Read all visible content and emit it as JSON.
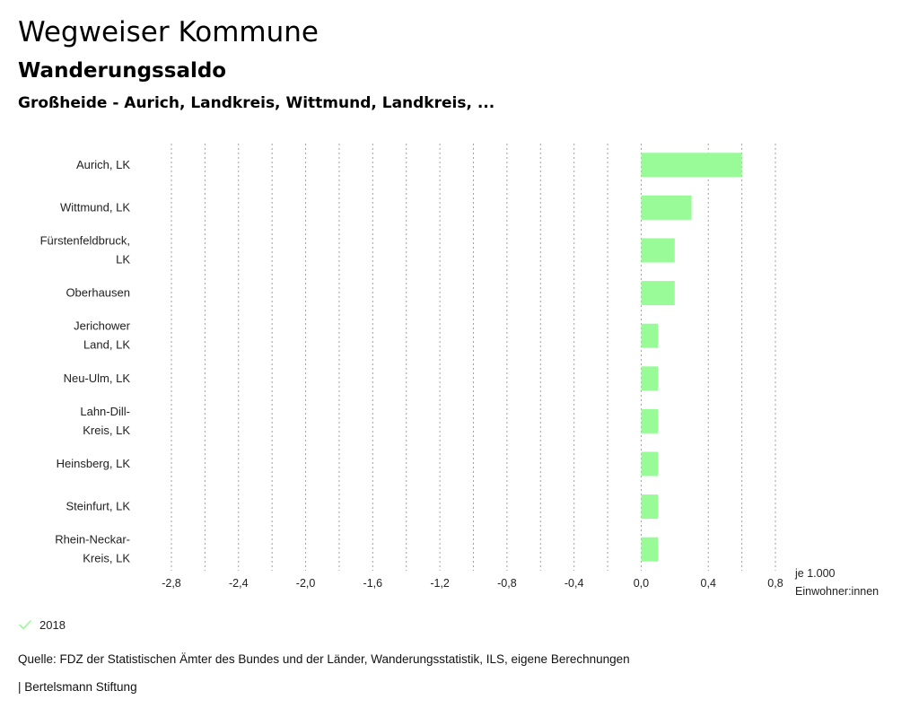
{
  "header": {
    "title": "Wegweiser Kommune",
    "subtitle": "Wanderungssaldo",
    "region": "Großheide - Aurich, Landkreis, Wittmund, Landkreis, ..."
  },
  "legend": {
    "label": "2018",
    "icon": "check-icon",
    "color": "#98fb98"
  },
  "footer": {
    "source": "Quelle: FDZ der Statistischen Ämter des Bundes und der Länder, Wanderungsstatistik, ILS, eigene Berechnungen",
    "brand": "| Bertelsmann Stiftung"
  },
  "chart_data": {
    "type": "bar",
    "orientation": "horizontal",
    "categories": [
      [
        "Aurich, LK"
      ],
      [
        "Wittmund, LK"
      ],
      [
        "Fürstenfeldbruck,",
        "LK"
      ],
      [
        "Oberhausen"
      ],
      [
        "Jerichower",
        "Land, LK"
      ],
      [
        "Neu-Ulm, LK"
      ],
      [
        "Lahn-Dill-",
        "Kreis, LK"
      ],
      [
        "Heinsberg, LK"
      ],
      [
        "Steinfurt, LK"
      ],
      [
        "Rhein-Neckar-",
        "Kreis, LK"
      ]
    ],
    "series": [
      {
        "name": "2018",
        "color": "#98fb98",
        "values": [
          0.6,
          0.3,
          0.2,
          0.2,
          0.1,
          0.1,
          0.1,
          0.1,
          0.1,
          0.1
        ]
      }
    ],
    "xlim": [
      -2.8,
      0.8
    ],
    "ticks": [
      -2.8,
      -2.4,
      -2.0,
      -1.6,
      -1.2,
      -0.8,
      -0.4,
      0.0,
      0.4,
      0.8
    ],
    "tick_labels": [
      "-2,8",
      "-2,4",
      "-2,0",
      "-1,6",
      "-1,2",
      "-0,8",
      "-0,4",
      "0,0",
      "0,4",
      "0,8"
    ],
    "minor_ticks": [
      -2.6,
      -2.2,
      -1.8,
      -1.4,
      -1.0,
      -0.6,
      -0.2,
      0.6
    ],
    "unit_label": [
      "je 1.000",
      "Einwohner:innen"
    ],
    "grid": true
  }
}
